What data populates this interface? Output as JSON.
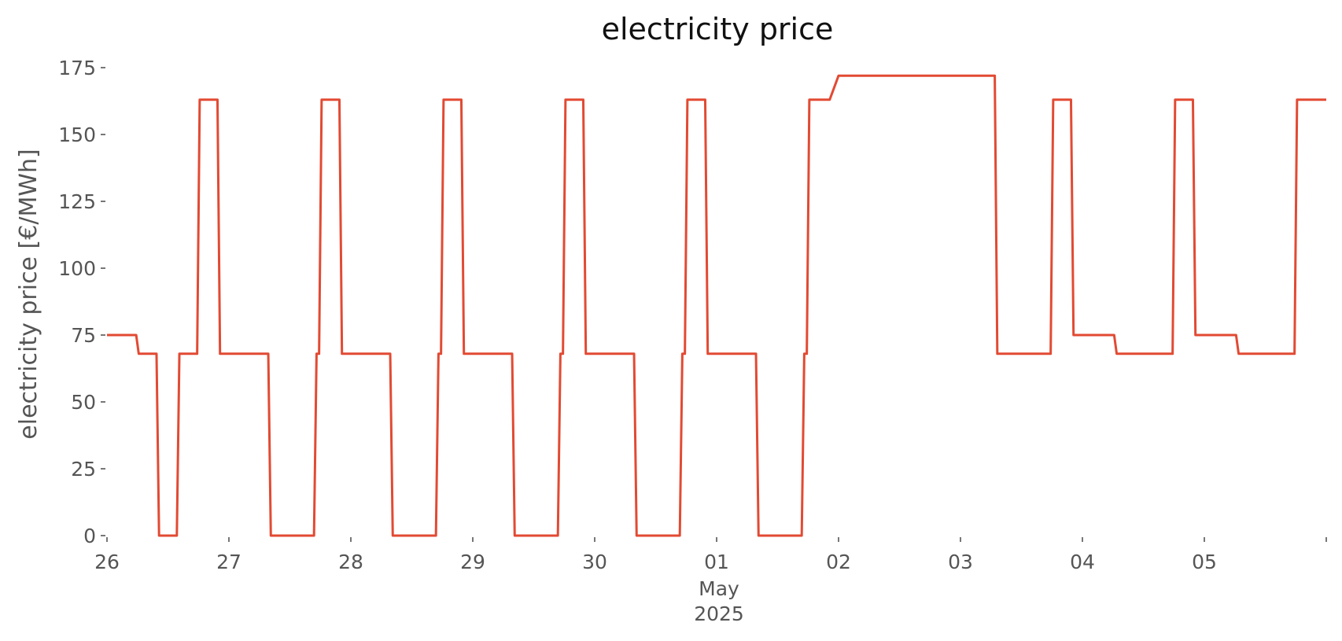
{
  "chart_data": {
    "type": "line",
    "title": "electricity price",
    "xlabel": "",
    "ylabel": "electricity price [€/MWh]",
    "ylim": [
      0,
      175
    ],
    "xlim": [
      "2025-04-26T00:00",
      "2025-05-06T00:00"
    ],
    "yticks": [
      0,
      25,
      50,
      75,
      100,
      125,
      150,
      175
    ],
    "xticks": [
      {
        "x": "2025-04-26T00:00",
        "label": "26"
      },
      {
        "x": "2025-04-27T00:00",
        "label": "27"
      },
      {
        "x": "2025-04-28T00:00",
        "label": "28"
      },
      {
        "x": "2025-04-29T00:00",
        "label": "29"
      },
      {
        "x": "2025-04-30T00:00",
        "label": "30"
      },
      {
        "x": "2025-05-01T00:00",
        "label": "01"
      },
      {
        "x": "2025-05-02T00:00",
        "label": "02"
      },
      {
        "x": "2025-05-03T00:00",
        "label": "03"
      },
      {
        "x": "2025-05-04T00:00",
        "label": "04"
      },
      {
        "x": "2025-05-05T00:00",
        "label": "05"
      },
      {
        "x": "2025-05-06T00:00",
        "label": ""
      }
    ],
    "month_label": "May",
    "year_label": "2025",
    "grid": false,
    "series": [
      {
        "color": "#e24a33",
        "x": [
          "2025-04-26T00:00",
          "2025-04-26T05:45",
          "2025-04-26T06:15",
          "2025-04-26T09:45",
          "2025-04-26T10:15",
          "2025-04-26T13:45",
          "2025-04-26T14:15",
          "2025-04-26T17:45",
          "2025-04-26T18:15",
          "2025-04-26T21:45",
          "2025-04-26T22:15",
          "2025-04-27T07:45",
          "2025-04-27T08:15",
          "2025-04-27T16:45",
          "2025-04-27T17:15",
          "2025-04-27T17:45",
          "2025-04-27T18:15",
          "2025-04-27T21:45",
          "2025-04-27T22:15",
          "2025-04-28T07:45",
          "2025-04-28T08:15",
          "2025-04-28T16:45",
          "2025-04-28T17:15",
          "2025-04-28T17:45",
          "2025-04-28T18:15",
          "2025-04-28T21:45",
          "2025-04-28T22:15",
          "2025-04-29T07:45",
          "2025-04-29T08:15",
          "2025-04-29T16:45",
          "2025-04-29T17:15",
          "2025-04-29T17:45",
          "2025-04-29T18:15",
          "2025-04-29T21:45",
          "2025-04-29T22:15",
          "2025-04-30T07:45",
          "2025-04-30T08:15",
          "2025-04-30T16:45",
          "2025-04-30T17:15",
          "2025-04-30T17:45",
          "2025-04-30T18:15",
          "2025-04-30T21:45",
          "2025-04-30T22:15",
          "2025-05-01T07:45",
          "2025-05-01T08:15",
          "2025-05-01T16:45",
          "2025-05-01T17:15",
          "2025-05-01T17:45",
          "2025-05-01T18:15",
          "2025-05-01T21:45",
          "2025-05-01T22:15",
          "2025-05-02T00:00",
          "2025-05-02T06:15",
          "2025-05-02T12:00",
          "2025-05-03T00:00",
          "2025-05-03T06:45",
          "2025-05-03T07:15",
          "2025-05-03T12:00",
          "2025-05-03T17:45",
          "2025-05-03T18:15",
          "2025-05-03T21:45",
          "2025-05-03T22:15",
          "2025-05-04T06:15",
          "2025-05-04T06:45",
          "2025-05-04T17:45",
          "2025-05-04T18:15",
          "2025-05-04T21:45",
          "2025-05-04T22:15",
          "2025-05-05T06:15",
          "2025-05-05T06:45",
          "2025-05-05T17:45",
          "2025-05-05T18:15",
          "2025-05-06T00:00"
        ],
        "y": [
          75,
          75,
          68,
          68,
          0,
          0,
          68,
          68,
          163,
          163,
          68,
          68,
          0,
          0,
          68,
          68,
          163,
          163,
          68,
          68,
          0,
          0,
          68,
          68,
          163,
          163,
          68,
          68,
          0,
          0,
          68,
          68,
          163,
          163,
          68,
          68,
          0,
          0,
          68,
          68,
          163,
          163,
          68,
          68,
          0,
          0,
          68,
          68,
          163,
          163,
          163,
          172,
          172,
          172,
          172,
          172,
          68,
          68,
          68,
          163,
          163,
          75,
          75,
          68,
          68,
          163,
          163,
          75,
          75,
          68,
          68,
          163,
          163
        ]
      }
    ]
  }
}
